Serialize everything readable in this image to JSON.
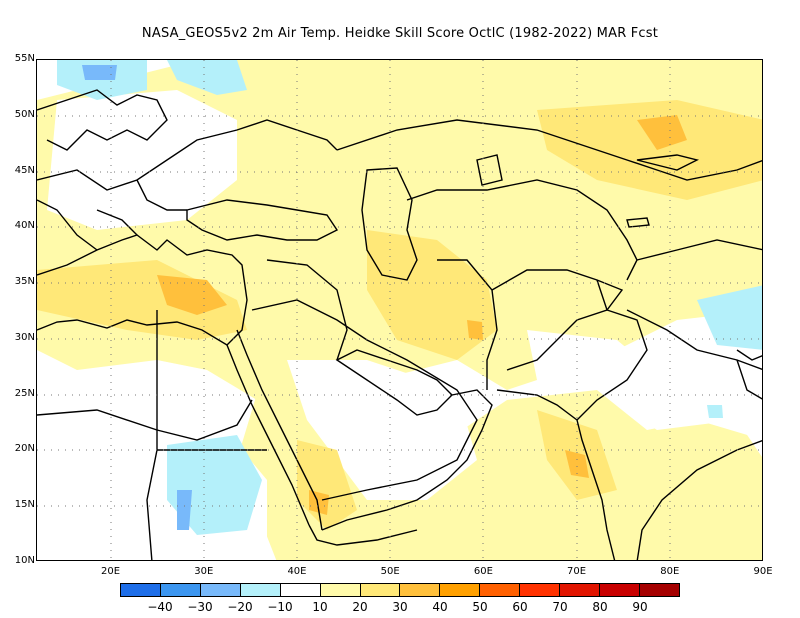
{
  "title": "NASA_GEOS5v2  2m Air Temp. Heidke Skill Score OctlC (1982-2022) MAR Fcst",
  "map": {
    "lon_range": [
      12,
      90
    ],
    "lat_range": [
      10,
      55
    ],
    "lat_labels": [
      "55N",
      "50N",
      "45N",
      "40N",
      "35N",
      "30N",
      "25N",
      "20N",
      "15N",
      "10N"
    ],
    "lon_labels": [
      "20E",
      "30E",
      "40E",
      "50E",
      "60E",
      "70E",
      "80E",
      "90E"
    ]
  },
  "colorbar": {
    "labels": [
      "-40",
      "-30",
      "-20",
      "-10",
      "10",
      "20",
      "30",
      "40",
      "50",
      "60",
      "70",
      "80",
      "90"
    ],
    "colors": [
      "#1e6ee8",
      "#3c96f0",
      "#78b9fa",
      "#b4f0fa",
      "#ffffff",
      "#fffaaa",
      "#ffe878",
      "#ffc03c",
      "#ffa000",
      "#ff6000",
      "#ff3200",
      "#e11400",
      "#a50000"
    ]
  }
}
